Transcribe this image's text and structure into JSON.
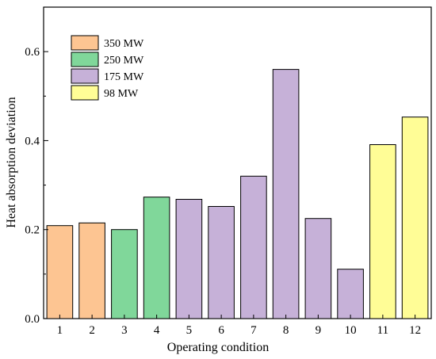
{
  "chart_data": {
    "type": "bar",
    "categories": [
      "1",
      "2",
      "3",
      "4",
      "5",
      "6",
      "7",
      "8",
      "9",
      "10",
      "11",
      "12"
    ],
    "values": [
      0.209,
      0.215,
      0.2,
      0.273,
      0.268,
      0.252,
      0.32,
      0.56,
      0.225,
      0.111,
      0.391,
      0.453
    ],
    "bar_groups": [
      "350 MW",
      "350 MW",
      "250 MW",
      "250 MW",
      "175 MW",
      "175 MW",
      "175 MW",
      "175 MW",
      "175 MW",
      "175 MW",
      "98 MW",
      "98 MW"
    ],
    "xlabel": "Operating condition",
    "ylabel": "Heat absorption deviation",
    "ylim": [
      0,
      0.7
    ],
    "yticks": [
      "0.0",
      "0.2",
      "0.4",
      "0.6"
    ],
    "grid": false,
    "legend": {
      "placement": "top-left",
      "entries": [
        {
          "label": "350 MW",
          "color": "#fdc592"
        },
        {
          "label": "250 MW",
          "color": "#80d79a"
        },
        {
          "label": "175 MW",
          "color": "#c6b1d8"
        },
        {
          "label": "98 MW",
          "color": "#fffd96"
        }
      ]
    }
  }
}
